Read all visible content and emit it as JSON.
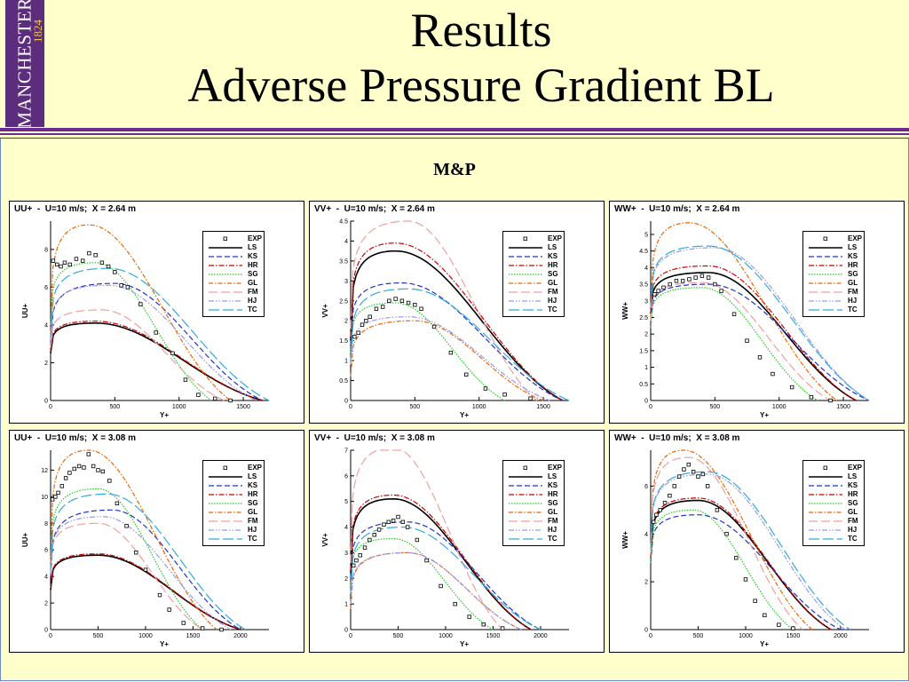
{
  "header": {
    "logo_text": "MANCHESTER",
    "logo_year": "1824",
    "title_line1": "Results",
    "title_line2": "Adverse Pressure Gradient BL",
    "subtitle": "M&P"
  },
  "colors": {
    "header_rule": "#6a2c91",
    "logo_bg": "#5c2d7d",
    "page_bg": "#ffffcc"
  },
  "legend": [
    {
      "key": "EXP",
      "color": "#000000",
      "dash": "none",
      "marker": true
    },
    {
      "key": "LS",
      "color": "#000000",
      "dash": "",
      "width": 1.6
    },
    {
      "key": "KS",
      "color": "#2233cc",
      "dash": "6,3"
    },
    {
      "key": "HR",
      "color": "#cc0000",
      "dash": "6,2,1.5,2"
    },
    {
      "key": "SG",
      "color": "#22cc22",
      "dash": "1.5,1.5"
    },
    {
      "key": "GL",
      "color": "#ee6600",
      "dash": "5,2,1.5,2"
    },
    {
      "key": "FM",
      "color": "#f0a0a0",
      "dash": "10,4"
    },
    {
      "key": "HJ",
      "color": "#9999ee",
      "dash": "6,2,1.5,2,1.5,2"
    },
    {
      "key": "TC",
      "color": "#33aadd",
      "dash": "12,4"
    }
  ],
  "chart_data": [
    {
      "type": "line",
      "title": "UU+  -  U=10 m/s;  X = 2.64 m",
      "xlabel": "Y+",
      "ylabel": "UU+",
      "xlim": [
        0,
        1700
      ],
      "ylim": [
        0,
        9.5
      ],
      "xticks": [
        0,
        500,
        1000,
        1500
      ],
      "yticks": [
        0,
        2,
        4,
        6,
        8
      ],
      "series": [
        {
          "name": "LS",
          "peak": 4.1,
          "peak_x": 350,
          "end": 1650,
          "start": 2.5
        },
        {
          "name": "KS",
          "peak": 6.2,
          "peak_x": 500,
          "end": 1650,
          "start": 3.0
        },
        {
          "name": "HR",
          "peak": 4.2,
          "peak_x": 350,
          "end": 1650,
          "start": 2.6
        },
        {
          "name": "SG",
          "peak": 7.3,
          "peak_x": 350,
          "end": 1250,
          "start": 4.0
        },
        {
          "name": "GL",
          "peak": 9.3,
          "peak_x": 300,
          "end": 1400,
          "start": 3.5
        },
        {
          "name": "FM",
          "peak": 4.8,
          "peak_x": 400,
          "end": 1350,
          "start": 2.8
        },
        {
          "name": "HJ",
          "peak": 6.1,
          "peak_x": 450,
          "end": 1600,
          "start": 3.2
        },
        {
          "name": "TC",
          "peak": 7.0,
          "peak_x": 450,
          "end": 1700,
          "start": 3.4
        }
      ],
      "exp": [
        [
          20,
          7.4
        ],
        [
          50,
          7.2
        ],
        [
          80,
          7.1
        ],
        [
          110,
          7.3
        ],
        [
          150,
          7.2
        ],
        [
          200,
          7.5
        ],
        [
          250,
          7.4
        ],
        [
          300,
          7.8
        ],
        [
          350,
          7.7
        ],
        [
          400,
          7.3
        ],
        [
          450,
          7.1
        ],
        [
          500,
          6.8
        ],
        [
          550,
          6.1
        ],
        [
          600,
          6.0
        ],
        [
          700,
          5.1
        ],
        [
          820,
          3.6
        ],
        [
          950,
          2.5
        ],
        [
          1050,
          1.1
        ],
        [
          1150,
          0.3
        ],
        [
          1280,
          0.1
        ],
        [
          1400,
          0.0
        ]
      ]
    },
    {
      "type": "line",
      "title": "VV+  -  U=10 m/s;  X = 2.64 m",
      "xlabel": "Y+",
      "ylabel": "VV+",
      "xlim": [
        0,
        1700
      ],
      "ylim": [
        0,
        4.5
      ],
      "xticks": [
        0,
        500,
        1000,
        1500
      ],
      "yticks": [
        0,
        0.5,
        1,
        1.5,
        2,
        2.5,
        3,
        3.5,
        4,
        4.5
      ],
      "series": [
        {
          "name": "LS",
          "peak": 3.75,
          "peak_x": 350,
          "end": 1650,
          "start": 1.5
        },
        {
          "name": "KS",
          "peak": 2.95,
          "peak_x": 400,
          "end": 1650,
          "start": 1.4
        },
        {
          "name": "HR",
          "peak": 3.95,
          "peak_x": 350,
          "end": 1650,
          "start": 1.6
        },
        {
          "name": "SG",
          "peak": 2.45,
          "peak_x": 350,
          "end": 1200,
          "start": 1.2
        },
        {
          "name": "GL",
          "peak": 2.0,
          "peak_x": 500,
          "end": 1500,
          "start": 0.6
        },
        {
          "name": "FM",
          "peak": 4.5,
          "peak_x": 450,
          "end": 1450,
          "start": 1.8
        },
        {
          "name": "HJ",
          "peak": 2.1,
          "peak_x": 450,
          "end": 1550,
          "start": 0.9
        },
        {
          "name": "TC",
          "peak": 2.8,
          "peak_x": 450,
          "end": 1700,
          "start": 1.0
        }
      ],
      "exp": [
        [
          30,
          1.6
        ],
        [
          60,
          1.7
        ],
        [
          90,
          1.9
        ],
        [
          120,
          2.0
        ],
        [
          150,
          2.1
        ],
        [
          200,
          2.3
        ],
        [
          250,
          2.35
        ],
        [
          300,
          2.5
        ],
        [
          350,
          2.55
        ],
        [
          400,
          2.5
        ],
        [
          450,
          2.45
        ],
        [
          500,
          2.4
        ],
        [
          550,
          2.3
        ],
        [
          650,
          1.85
        ],
        [
          780,
          1.2
        ],
        [
          900,
          0.65
        ],
        [
          1050,
          0.3
        ],
        [
          1200,
          0.15
        ],
        [
          1400,
          0.05
        ]
      ]
    },
    {
      "type": "line",
      "title": "WW+  -  U=10 m/s;  X = 2.64 m",
      "xlabel": "Y+",
      "ylabel": "WW+",
      "xlim": [
        0,
        1700
      ],
      "ylim": [
        0,
        5.4
      ],
      "xticks": [
        0,
        500,
        1000,
        1500
      ],
      "yticks": [
        0,
        0.5,
        1,
        1.5,
        2,
        2.5,
        3,
        3.5,
        4,
        4.5,
        5
      ],
      "series": [
        {
          "name": "LS",
          "peak": 3.85,
          "peak_x": 450,
          "end": 1600,
          "start": 2.6
        },
        {
          "name": "KS",
          "peak": 3.5,
          "peak_x": 450,
          "end": 1700,
          "start": 2.4
        },
        {
          "name": "HR",
          "peak": 4.05,
          "peak_x": 450,
          "end": 1600,
          "start": 2.7
        },
        {
          "name": "SG",
          "peak": 3.4,
          "peak_x": 400,
          "end": 1300,
          "start": 2.2
        },
        {
          "name": "GL",
          "peak": 5.35,
          "peak_x": 300,
          "end": 1450,
          "start": 2.5
        },
        {
          "name": "FM",
          "peak": 3.55,
          "peak_x": 400,
          "end": 1400,
          "start": 2.4
        },
        {
          "name": "HJ",
          "peak": 4.6,
          "peak_x": 500,
          "end": 1700,
          "start": 2.8
        },
        {
          "name": "TC",
          "peak": 4.65,
          "peak_x": 450,
          "end": 1700,
          "start": 2.8
        }
      ],
      "exp": [
        [
          30,
          3.2
        ],
        [
          60,
          3.3
        ],
        [
          100,
          3.4
        ],
        [
          150,
          3.5
        ],
        [
          200,
          3.6
        ],
        [
          250,
          3.6
        ],
        [
          300,
          3.65
        ],
        [
          350,
          3.7
        ],
        [
          400,
          3.75
        ],
        [
          450,
          3.7
        ],
        [
          500,
          3.5
        ],
        [
          550,
          3.3
        ],
        [
          650,
          2.6
        ],
        [
          750,
          1.8
        ],
        [
          850,
          1.3
        ],
        [
          950,
          0.8
        ],
        [
          1100,
          0.4
        ],
        [
          1250,
          0.1
        ],
        [
          1400,
          0.0
        ]
      ]
    },
    {
      "type": "line",
      "title": "UU+  -  U=10 m/s;  X = 3.08 m",
      "xlabel": "Y+",
      "ylabel": "UU+",
      "xlim": [
        0,
        2300
      ],
      "ylim": [
        0,
        13.5
      ],
      "xticks": [
        0,
        500,
        1000,
        1500,
        2000
      ],
      "yticks": [
        0,
        2,
        4,
        6,
        8,
        10,
        12
      ],
      "series": [
        {
          "name": "LS",
          "peak": 5.6,
          "peak_x": 500,
          "end": 2000,
          "start": 3.0
        },
        {
          "name": "KS",
          "peak": 9.0,
          "peak_x": 650,
          "end": 2000,
          "start": 4.0
        },
        {
          "name": "HR",
          "peak": 5.7,
          "peak_x": 500,
          "end": 2000,
          "start": 3.1
        },
        {
          "name": "SG",
          "peak": 10.6,
          "peak_x": 500,
          "end": 1600,
          "start": 5.0
        },
        {
          "name": "GL",
          "peak": 13.5,
          "peak_x": 400,
          "end": 1750,
          "start": 5.0
        },
        {
          "name": "FM",
          "peak": 8.0,
          "peak_x": 500,
          "end": 1600,
          "start": 4.2
        },
        {
          "name": "HJ",
          "peak": 8.5,
          "peak_x": 550,
          "end": 1900,
          "start": 4.2
        },
        {
          "name": "TC",
          "peak": 10.2,
          "peak_x": 600,
          "end": 2050,
          "start": 4.6
        }
      ],
      "exp": [
        [
          20,
          9.8
        ],
        [
          50,
          10.0
        ],
        [
          80,
          10.3
        ],
        [
          120,
          10.8
        ],
        [
          160,
          11.4
        ],
        [
          200,
          11.8
        ],
        [
          250,
          12.1
        ],
        [
          300,
          12.3
        ],
        [
          350,
          12.2
        ],
        [
          400,
          13.2
        ],
        [
          450,
          12.3
        ],
        [
          500,
          12.0
        ],
        [
          550,
          11.9
        ],
        [
          620,
          11.2
        ],
        [
          700,
          9.5
        ],
        [
          800,
          7.8
        ],
        [
          900,
          5.8
        ],
        [
          1000,
          4.5
        ],
        [
          1150,
          2.6
        ],
        [
          1250,
          1.5
        ],
        [
          1400,
          0.5
        ],
        [
          1600,
          0.1
        ],
        [
          1800,
          0.0
        ]
      ]
    },
    {
      "type": "line",
      "title": "VV+  -  U=10 m/s;  X = 3.08 m",
      "xlabel": "Y+",
      "ylabel": "VV+",
      "xlim": [
        0,
        2300
      ],
      "ylim": [
        0,
        7
      ],
      "xticks": [
        0,
        500,
        1000,
        1500,
        2000
      ],
      "yticks": [
        0,
        1,
        2,
        3,
        4,
        5,
        6,
        7
      ],
      "series": [
        {
          "name": "LS",
          "peak": 5.1,
          "peak_x": 450,
          "end": 1900,
          "start": 2.2
        },
        {
          "name": "KS",
          "peak": 4.2,
          "peak_x": 600,
          "end": 2000,
          "start": 2.0
        },
        {
          "name": "HR",
          "peak": 5.25,
          "peak_x": 450,
          "end": 1900,
          "start": 2.3
        },
        {
          "name": "SG",
          "peak": 3.55,
          "peak_x": 450,
          "end": 1500,
          "start": 1.7
        },
        {
          "name": "GL",
          "peak": 3.0,
          "peak_x": 600,
          "end": 1800,
          "start": 0.8
        },
        {
          "name": "FM",
          "peak": 7.1,
          "peak_x": 450,
          "end": 1600,
          "start": 2.6
        },
        {
          "name": "HJ",
          "peak": 3.0,
          "peak_x": 600,
          "end": 1800,
          "start": 1.0
        },
        {
          "name": "TC",
          "peak": 4.0,
          "peak_x": 550,
          "end": 2000,
          "start": 1.4
        }
      ],
      "exp": [
        [
          30,
          2.5
        ],
        [
          60,
          2.7
        ],
        [
          100,
          2.9
        ],
        [
          150,
          3.2
        ],
        [
          200,
          3.5
        ],
        [
          250,
          3.7
        ],
        [
          300,
          3.9
        ],
        [
          350,
          4.1
        ],
        [
          400,
          4.2
        ],
        [
          450,
          4.25
        ],
        [
          500,
          4.4
        ],
        [
          550,
          4.2
        ],
        [
          600,
          4.0
        ],
        [
          700,
          3.5
        ],
        [
          800,
          2.7
        ],
        [
          950,
          1.7
        ],
        [
          1100,
          1.0
        ],
        [
          1250,
          0.5
        ],
        [
          1400,
          0.2
        ],
        [
          1600,
          0.05
        ]
      ]
    },
    {
      "type": "line",
      "title": "WW+  -  U=10 m/s;  X = 3.08 m",
      "xlabel": "Y+",
      "ylabel": "WW+",
      "xlim": [
        0,
        2300
      ],
      "ylim": [
        0,
        7.5
      ],
      "xticks": [
        0,
        500,
        1000,
        1500,
        2000
      ],
      "yticks": [
        0,
        2,
        4,
        6
      ],
      "series": [
        {
          "name": "LS",
          "peak": 5.4,
          "peak_x": 500,
          "end": 1900,
          "start": 3.0
        },
        {
          "name": "KS",
          "peak": 4.8,
          "peak_x": 500,
          "end": 2000,
          "start": 2.8
        },
        {
          "name": "HR",
          "peak": 5.5,
          "peak_x": 500,
          "end": 1900,
          "start": 3.1
        },
        {
          "name": "SG",
          "peak": 5.0,
          "peak_x": 450,
          "end": 1500,
          "start": 2.8
        },
        {
          "name": "GL",
          "peak": 7.5,
          "peak_x": 350,
          "end": 1700,
          "start": 3.0
        },
        {
          "name": "FM",
          "peak": 7.2,
          "peak_x": 400,
          "end": 1600,
          "start": 3.2
        },
        {
          "name": "HJ",
          "peak": 6.5,
          "peak_x": 600,
          "end": 2050,
          "start": 3.4
        },
        {
          "name": "TC",
          "peak": 6.6,
          "peak_x": 600,
          "end": 2100,
          "start": 3.4
        }
      ],
      "exp": [
        [
          30,
          4.5
        ],
        [
          60,
          4.8
        ],
        [
          100,
          5.0
        ],
        [
          150,
          5.3
        ],
        [
          200,
          5.6
        ],
        [
          250,
          6.0
        ],
        [
          300,
          6.4
        ],
        [
          350,
          6.7
        ],
        [
          400,
          6.9
        ],
        [
          450,
          6.6
        ],
        [
          500,
          6.4
        ],
        [
          550,
          6.5
        ],
        [
          600,
          6.0
        ],
        [
          700,
          5.0
        ],
        [
          800,
          4.0
        ],
        [
          900,
          3.0
        ],
        [
          1000,
          2.1
        ],
        [
          1100,
          1.2
        ],
        [
          1200,
          0.6
        ],
        [
          1350,
          0.2
        ],
        [
          1500,
          0.05
        ]
      ]
    }
  ]
}
